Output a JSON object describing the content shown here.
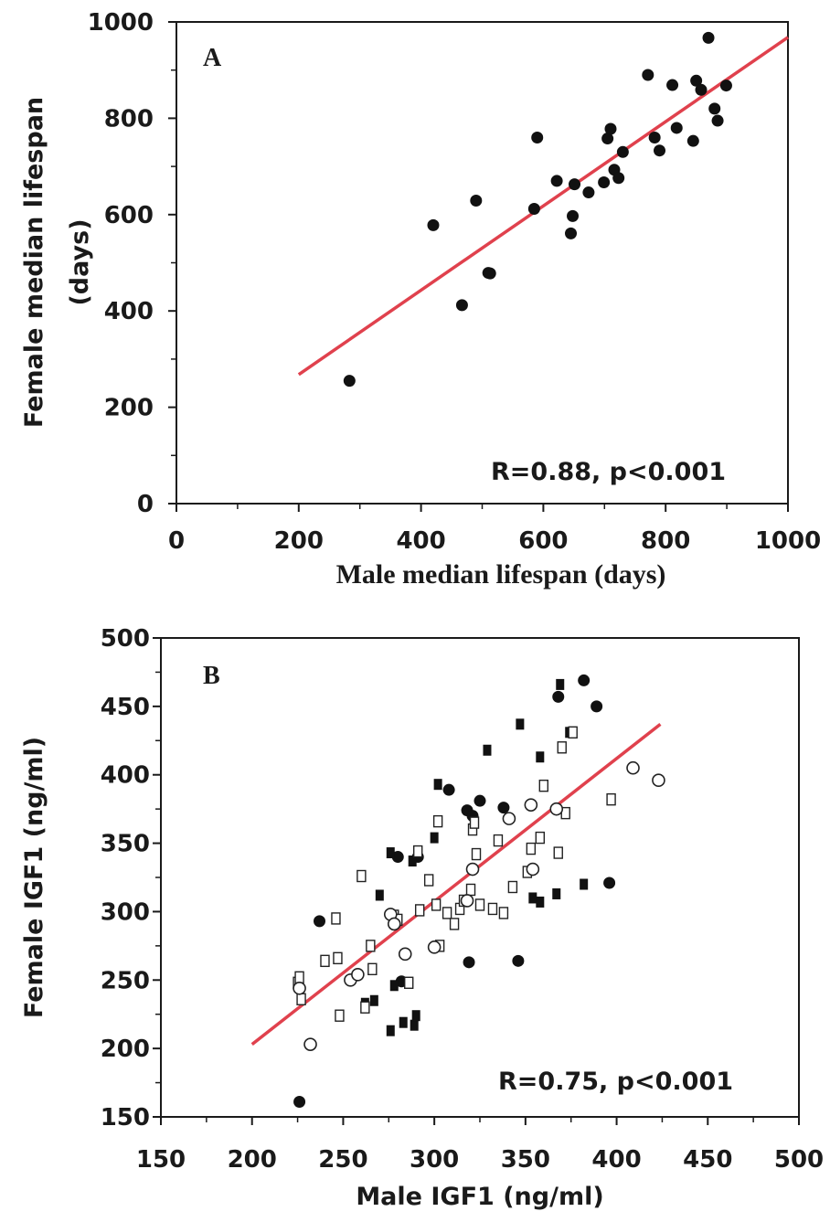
{
  "chart_data": [
    {
      "type": "scatter",
      "panel_label": "A",
      "title": "",
      "xlabel": "Male median lifespan (days)",
      "ylabel_line1": "Female median lifespan",
      "ylabel_line2": "(days)",
      "xlim": [
        0,
        1000
      ],
      "ylim": [
        0,
        1000
      ],
      "xticks": [
        "0",
        "200",
        "400",
        "600",
        "800",
        "1000"
      ],
      "yticks": [
        "0",
        "200",
        "400",
        "600",
        "800",
        "1000"
      ],
      "annotation": "R=0.88, p<0.001",
      "grid": false,
      "fit_line": {
        "x": [
          200,
          1000
        ],
        "y": [
          268,
          968
        ],
        "color": "#e0414d"
      },
      "series": [
        {
          "marker": "filled-circle",
          "points": [
            [
              283,
              255
            ],
            [
              420,
              578
            ],
            [
              467,
              412
            ],
            [
              490,
              629
            ],
            [
              510,
              479
            ],
            [
              513,
              478
            ],
            [
              585,
              612
            ],
            [
              590,
              760
            ],
            [
              622,
              670
            ],
            [
              645,
              561
            ],
            [
              648,
              597
            ],
            [
              651,
              663
            ],
            [
              674,
              646
            ],
            [
              699,
              667
            ],
            [
              705,
              758
            ],
            [
              710,
              778
            ],
            [
              716,
              693
            ],
            [
              723,
              676
            ],
            [
              730,
              730
            ],
            [
              771,
              890
            ],
            [
              782,
              760
            ],
            [
              790,
              733
            ],
            [
              811,
              869
            ],
            [
              818,
              780
            ],
            [
              845,
              753
            ],
            [
              850,
              878
            ],
            [
              858,
              859
            ],
            [
              870,
              967
            ],
            [
              880,
              820
            ],
            [
              885,
              795
            ],
            [
              899,
              868
            ]
          ]
        }
      ]
    },
    {
      "type": "scatter",
      "panel_label": "B",
      "title": "",
      "xlabel": "Male IGF1 (ng/ml)",
      "ylabel": "Female IGF1 (ng/ml)",
      "xlim": [
        150,
        500
      ],
      "ylim": [
        150,
        500
      ],
      "xticks": [
        "150",
        "200",
        "250",
        "300",
        "350",
        "400",
        "450",
        "500"
      ],
      "yticks": [
        "150",
        "200",
        "250",
        "300",
        "350",
        "400",
        "450",
        "500"
      ],
      "annotation": "R=0.75, p<0.001",
      "grid": false,
      "fit_line": {
        "x": [
          200,
          424
        ],
        "y": [
          203,
          437
        ],
        "color": "#e0414d"
      },
      "series": [
        {
          "marker": "filled-circle",
          "points": [
            [
              226,
              161
            ],
            [
              237,
              293
            ],
            [
              280,
              340
            ],
            [
              282,
              249
            ],
            [
              291,
              340
            ],
            [
              308,
              389
            ],
            [
              318,
              374
            ],
            [
              319,
              263
            ],
            [
              321,
              370
            ],
            [
              325,
              381
            ],
            [
              338,
              376
            ],
            [
              346,
              264
            ],
            [
              368,
              457
            ],
            [
              382,
              469
            ],
            [
              389,
              450
            ],
            [
              396,
              321
            ]
          ]
        },
        {
          "marker": "filled-square",
          "points": [
            [
              262,
              233
            ],
            [
              267,
              235
            ],
            [
              270,
              312
            ],
            [
              276,
              213
            ],
            [
              276,
              343
            ],
            [
              278,
              246
            ],
            [
              283,
              219
            ],
            [
              288,
              337
            ],
            [
              289,
              217
            ],
            [
              290,
              224
            ],
            [
              300,
              354
            ],
            [
              302,
              393
            ],
            [
              329,
              418
            ],
            [
              347,
              437
            ],
            [
              354,
              310
            ],
            [
              358,
              413
            ],
            [
              358,
              307
            ],
            [
              367,
              313
            ],
            [
              369,
              466
            ],
            [
              374,
              431
            ],
            [
              382,
              320
            ]
          ]
        },
        {
          "marker": "open-square",
          "points": [
            [
              225,
              248
            ],
            [
              226,
              252
            ],
            [
              227,
              236
            ],
            [
              240,
              264
            ],
            [
              246,
              295
            ],
            [
              247,
              266
            ],
            [
              248,
              224
            ],
            [
              260,
              326
            ],
            [
              262,
              230
            ],
            [
              265,
              275
            ],
            [
              266,
              258
            ],
            [
              278,
              297
            ],
            [
              280,
              294
            ],
            [
              286,
              248
            ],
            [
              291,
              344
            ],
            [
              292,
              301
            ],
            [
              297,
              323
            ],
            [
              301,
              305
            ],
            [
              302,
              366
            ],
            [
              303,
              275
            ],
            [
              307,
              299
            ],
            [
              311,
              291
            ],
            [
              314,
              302
            ],
            [
              316,
              308
            ],
            [
              320,
              316
            ],
            [
              321,
              360
            ],
            [
              322,
              365
            ],
            [
              323,
              342
            ],
            [
              325,
              305
            ],
            [
              332,
              302
            ],
            [
              335,
              352
            ],
            [
              338,
              299
            ],
            [
              343,
              318
            ],
            [
              351,
              329
            ],
            [
              353,
              346
            ],
            [
              358,
              354
            ],
            [
              360,
              392
            ],
            [
              368,
              343
            ],
            [
              370,
              420
            ],
            [
              372,
              372
            ],
            [
              376,
              431
            ],
            [
              397,
              382
            ]
          ]
        },
        {
          "marker": "open-circle",
          "points": [
            [
              226,
              244
            ],
            [
              232,
              203
            ],
            [
              254,
              250
            ],
            [
              258,
              254
            ],
            [
              276,
              298
            ],
            [
              278,
              291
            ],
            [
              284,
              269
            ],
            [
              300,
              274
            ],
            [
              318,
              308
            ],
            [
              321,
              331
            ],
            [
              341,
              368
            ],
            [
              353,
              378
            ],
            [
              354,
              331
            ],
            [
              367,
              375
            ],
            [
              409,
              405
            ],
            [
              423,
              396
            ]
          ]
        }
      ]
    }
  ]
}
